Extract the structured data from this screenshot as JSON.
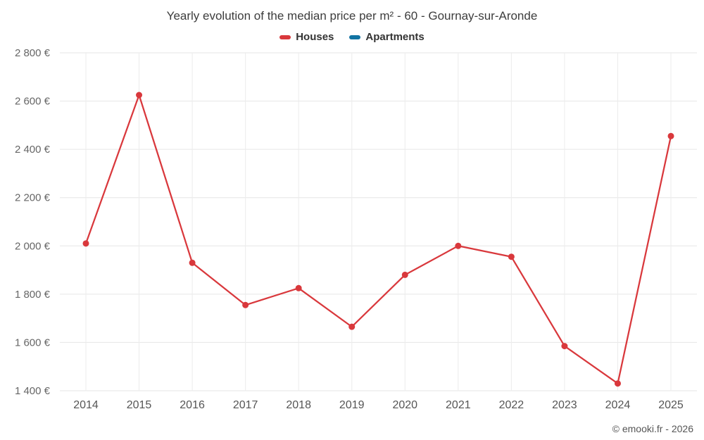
{
  "title": "Yearly evolution of the median price per m² - 60 - Gournay-sur-Aronde",
  "credit": "© emooki.fr - 2026",
  "legend": [
    {
      "label": "Houses",
      "color": "#d9383c"
    },
    {
      "label": "Apartments",
      "color": "#1274a3"
    }
  ],
  "chart_data": {
    "type": "line",
    "title": "Yearly evolution of the median price per m² - 60 - Gournay-sur-Aronde",
    "xlabel": "",
    "ylabel": "",
    "x": [
      "2014",
      "2015",
      "2016",
      "2017",
      "2018",
      "2019",
      "2020",
      "2021",
      "2022",
      "2023",
      "2024",
      "2025"
    ],
    "series": [
      {
        "name": "Houses",
        "color": "#d9383c",
        "values": [
          2010,
          2625,
          1930,
          1755,
          1825,
          1665,
          1880,
          2000,
          1955,
          1585,
          1430,
          2455
        ]
      },
      {
        "name": "Apartments",
        "color": "#1274a3",
        "values": []
      }
    ],
    "ylim": [
      1400,
      2800
    ],
    "yticks": [
      {
        "value": 1400,
        "label": "1 400 €"
      },
      {
        "value": 1600,
        "label": "1 600 €"
      },
      {
        "value": 1800,
        "label": "1 800 €"
      },
      {
        "value": 2000,
        "label": "2 000 €"
      },
      {
        "value": 2200,
        "label": "2 200 €"
      },
      {
        "value": 2400,
        "label": "2 400 €"
      },
      {
        "value": 2600,
        "label": "2 600 €"
      },
      {
        "value": 2800,
        "label": "2 800 €"
      }
    ],
    "grid": true,
    "legend_position": "top"
  }
}
